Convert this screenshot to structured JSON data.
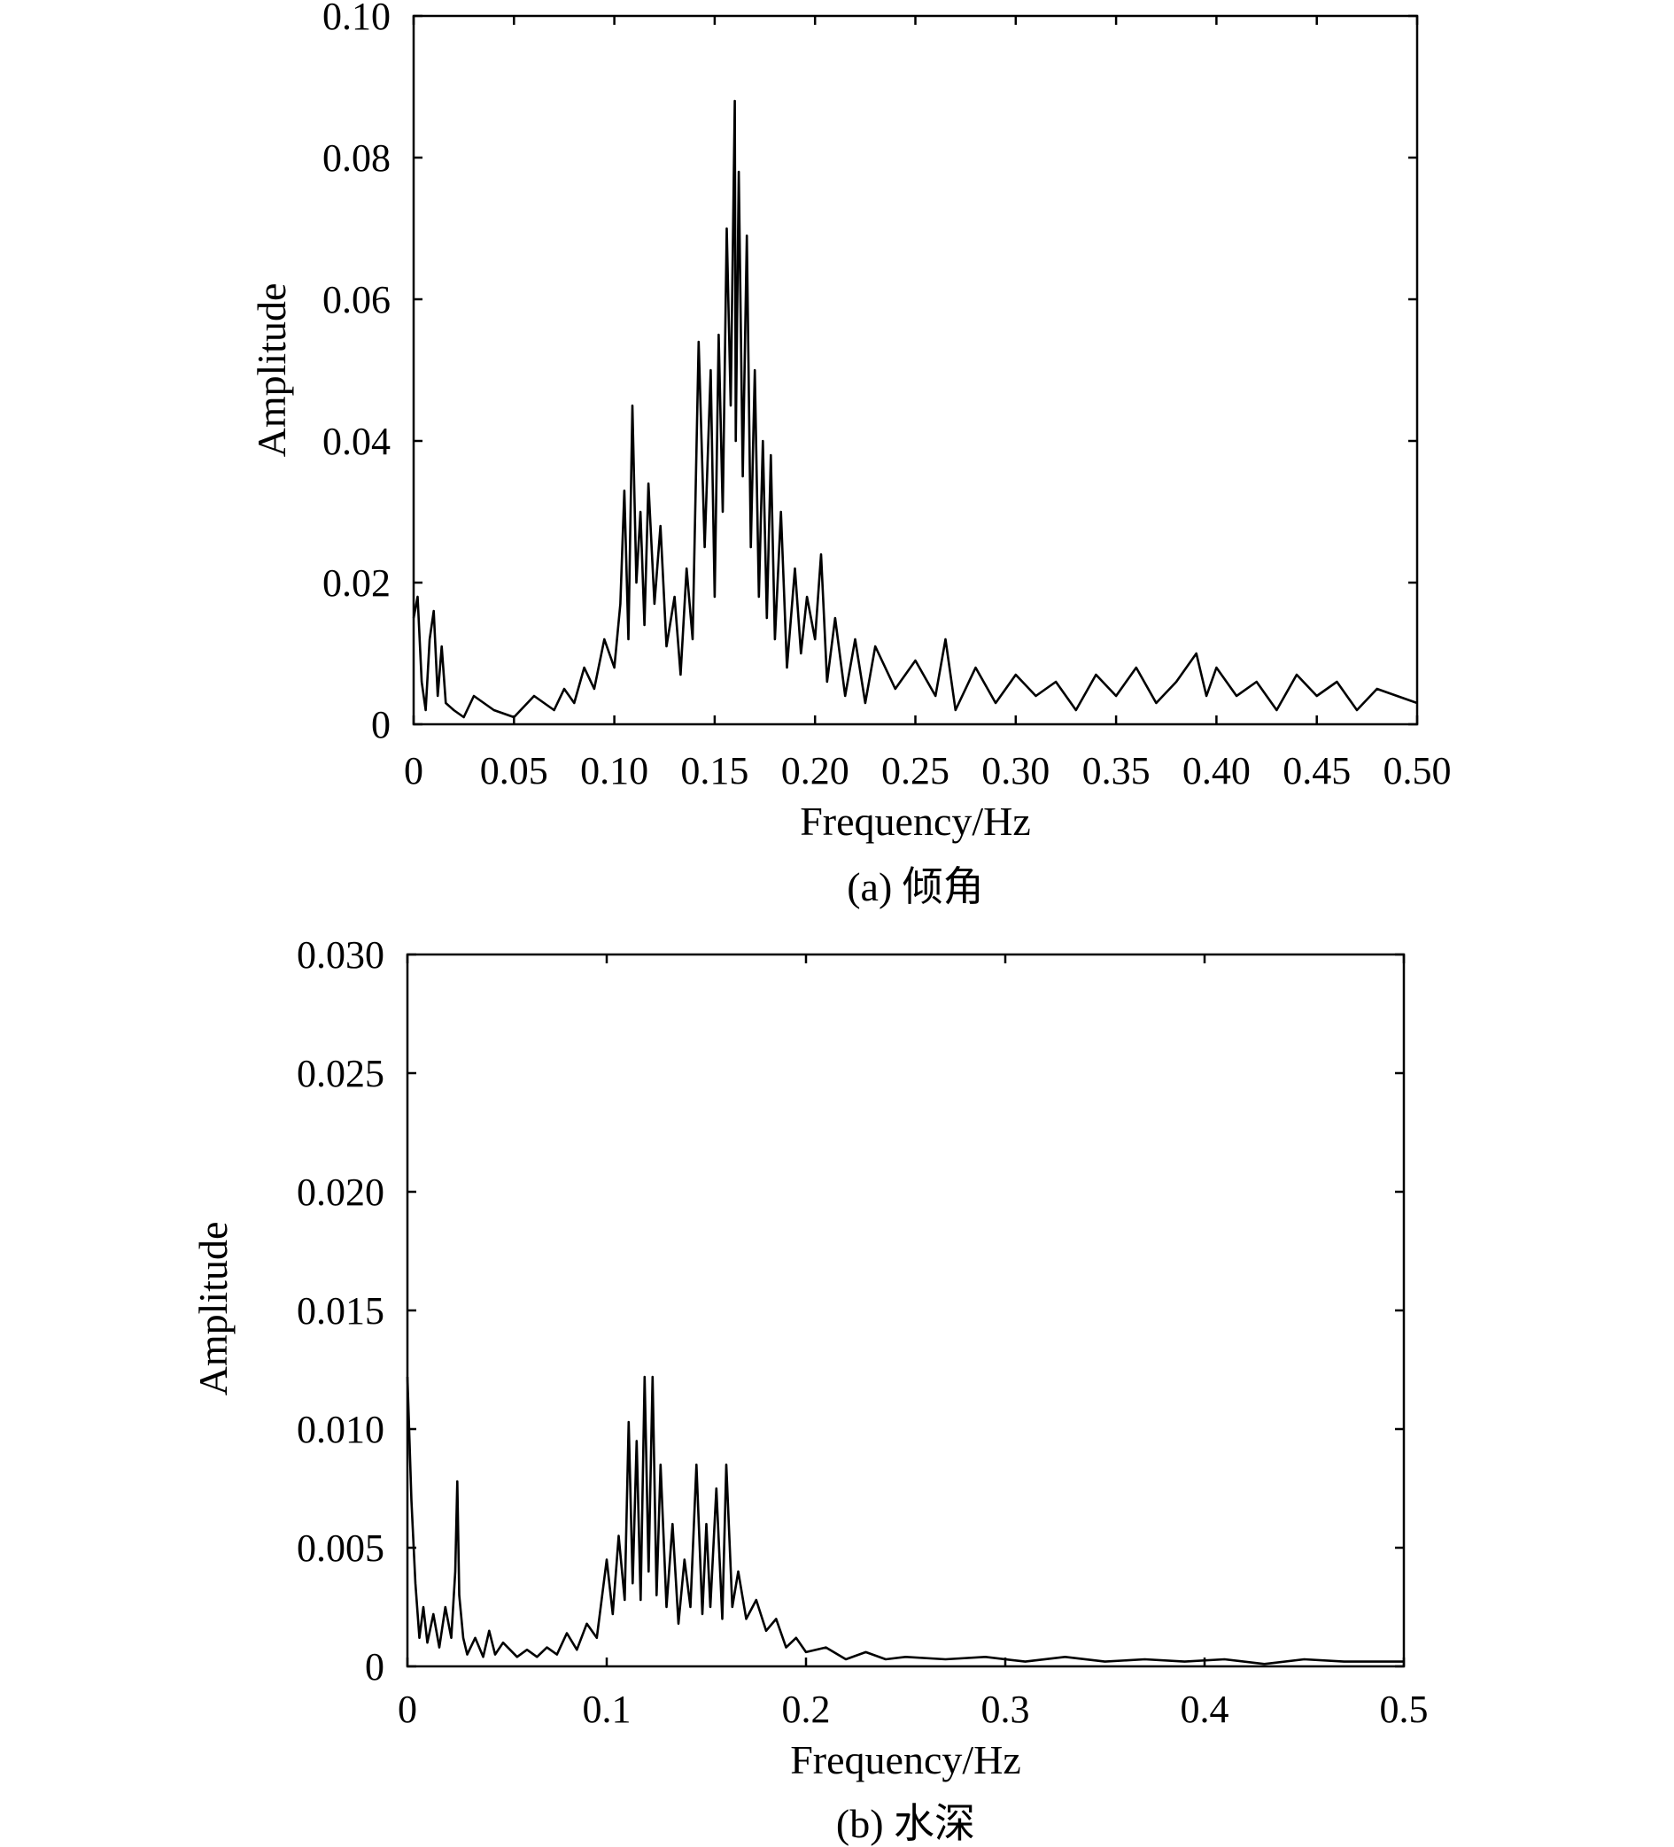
{
  "chart_data": [
    {
      "type": "line",
      "caption": "(a) 倾角",
      "xlabel": "Frequency/Hz",
      "ylabel": "Amplitude",
      "xlim": [
        0,
        0.5
      ],
      "ylim": [
        0,
        0.1
      ],
      "xticks": [
        "0",
        "0.05",
        "0.10",
        "0.15",
        "0.20",
        "0.25",
        "0.30",
        "0.35",
        "0.40",
        "0.45",
        "0.50"
      ],
      "yticks": [
        "0",
        "0.02",
        "0.04",
        "0.06",
        "0.08",
        "0.10"
      ],
      "series": [
        {
          "x": [
            0,
            0.002,
            0.004,
            0.006,
            0.008,
            0.01,
            0.012,
            0.014,
            0.016,
            0.02,
            0.025,
            0.03,
            0.04,
            0.05,
            0.06,
            0.07,
            0.075,
            0.08,
            0.085,
            0.09,
            0.095,
            0.1,
            0.103,
            0.105,
            0.107,
            0.109,
            0.111,
            0.113,
            0.115,
            0.117,
            0.12,
            0.123,
            0.126,
            0.13,
            0.133,
            0.136,
            0.139,
            0.142,
            0.145,
            0.148,
            0.15,
            0.152,
            0.154,
            0.156,
            0.158,
            0.16,
            0.1605,
            0.162,
            0.164,
            0.166,
            0.168,
            0.17,
            0.172,
            0.174,
            0.176,
            0.178,
            0.18,
            0.183,
            0.186,
            0.19,
            0.193,
            0.196,
            0.2,
            0.203,
            0.206,
            0.21,
            0.215,
            0.22,
            0.225,
            0.23,
            0.24,
            0.25,
            0.26,
            0.265,
            0.27,
            0.28,
            0.29,
            0.3,
            0.31,
            0.32,
            0.33,
            0.34,
            0.35,
            0.36,
            0.37,
            0.38,
            0.39,
            0.395,
            0.4,
            0.41,
            0.42,
            0.43,
            0.44,
            0.45,
            0.46,
            0.47,
            0.48,
            0.49,
            0.5
          ],
          "y": [
            0.015,
            0.018,
            0.006,
            0.002,
            0.012,
            0.016,
            0.004,
            0.011,
            0.003,
            0.002,
            0.001,
            0.004,
            0.002,
            0.001,
            0.004,
            0.002,
            0.005,
            0.003,
            0.008,
            0.005,
            0.012,
            0.008,
            0.017,
            0.033,
            0.012,
            0.045,
            0.02,
            0.03,
            0.014,
            0.034,
            0.017,
            0.028,
            0.011,
            0.018,
            0.007,
            0.022,
            0.012,
            0.054,
            0.025,
            0.05,
            0.018,
            0.055,
            0.03,
            0.07,
            0.045,
            0.088,
            0.04,
            0.078,
            0.035,
            0.069,
            0.025,
            0.05,
            0.018,
            0.04,
            0.015,
            0.038,
            0.012,
            0.03,
            0.008,
            0.022,
            0.01,
            0.018,
            0.012,
            0.024,
            0.006,
            0.015,
            0.004,
            0.012,
            0.003,
            0.011,
            0.005,
            0.009,
            0.004,
            0.012,
            0.002,
            0.008,
            0.003,
            0.007,
            0.004,
            0.006,
            0.002,
            0.007,
            0.004,
            0.008,
            0.003,
            0.006,
            0.01,
            0.004,
            0.008,
            0.004,
            0.006,
            0.002,
            0.007,
            0.004,
            0.006,
            0.002,
            0.005,
            0.004,
            0.003
          ]
        }
      ]
    },
    {
      "type": "line",
      "caption": "(b) 水深",
      "xlabel": "Frequency/Hz",
      "ylabel": "Amplitude",
      "xlim": [
        0,
        0.5
      ],
      "ylim": [
        0,
        0.03
      ],
      "xticks": [
        "0",
        "0.1",
        "0.2",
        "0.3",
        "0.4",
        "0.5"
      ],
      "yticks": [
        "0",
        "0.005",
        "0.010",
        "0.015",
        "0.020",
        "0.025",
        "0.030"
      ],
      "series": [
        {
          "x": [
            0,
            0.002,
            0.004,
            0.006,
            0.008,
            0.01,
            0.013,
            0.016,
            0.019,
            0.022,
            0.024,
            0.025,
            0.026,
            0.028,
            0.03,
            0.034,
            0.038,
            0.041,
            0.044,
            0.048,
            0.055,
            0.06,
            0.065,
            0.07,
            0.075,
            0.08,
            0.085,
            0.09,
            0.095,
            0.1,
            0.103,
            0.106,
            0.109,
            0.111,
            0.113,
            0.115,
            0.117,
            0.119,
            0.121,
            0.123,
            0.125,
            0.127,
            0.13,
            0.133,
            0.136,
            0.139,
            0.142,
            0.145,
            0.148,
            0.15,
            0.152,
            0.155,
            0.158,
            0.16,
            0.163,
            0.166,
            0.17,
            0.175,
            0.18,
            0.185,
            0.19,
            0.195,
            0.2,
            0.21,
            0.22,
            0.23,
            0.24,
            0.25,
            0.27,
            0.29,
            0.31,
            0.33,
            0.35,
            0.37,
            0.39,
            0.41,
            0.43,
            0.45,
            0.47,
            0.49,
            0.5
          ],
          "y": [
            0.0122,
            0.007,
            0.0035,
            0.0012,
            0.0025,
            0.001,
            0.0022,
            0.0008,
            0.0025,
            0.0012,
            0.004,
            0.0078,
            0.003,
            0.0012,
            0.0005,
            0.0012,
            0.0004,
            0.0015,
            0.0005,
            0.001,
            0.0004,
            0.0007,
            0.0004,
            0.0008,
            0.0005,
            0.0014,
            0.0007,
            0.0018,
            0.0012,
            0.0045,
            0.0022,
            0.0055,
            0.0028,
            0.0103,
            0.0035,
            0.0095,
            0.0028,
            0.0122,
            0.004,
            0.0122,
            0.003,
            0.0085,
            0.0025,
            0.006,
            0.0018,
            0.0045,
            0.0025,
            0.0085,
            0.0022,
            0.006,
            0.0025,
            0.0075,
            0.002,
            0.0085,
            0.0025,
            0.004,
            0.002,
            0.0028,
            0.0015,
            0.002,
            0.0008,
            0.0012,
            0.0006,
            0.0008,
            0.0003,
            0.0006,
            0.0003,
            0.0004,
            0.0003,
            0.0004,
            0.0002,
            0.0004,
            0.0002,
            0.0003,
            0.0002,
            0.0003,
            0.0001,
            0.0003,
            0.0002,
            0.0002,
            0.0002
          ]
        }
      ]
    }
  ]
}
